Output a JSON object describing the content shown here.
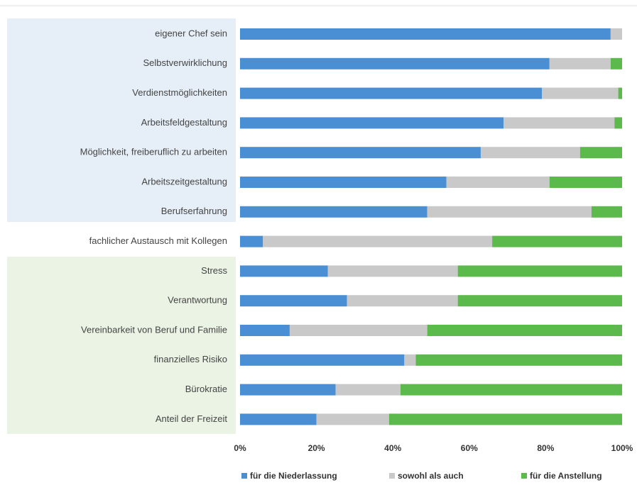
{
  "chart_data": {
    "type": "stacked_bar_horizontal",
    "categories": [
      "eigener Chef sein",
      "Selbstverwirklichung",
      "Verdienstmöglichkeiten",
      "Arbeitsfeldgestaltung",
      "Möglichkeit, freiberuflich zu arbeiten",
      "Arbeitszeitgestaltung",
      "Berufserfahrung",
      "fachlicher Austausch mit Kollegen",
      "Stress",
      "Verantwortung",
      "Vereinbarkeit von Beruf und Familie",
      "finanzielles Risiko",
      "Bürokratie",
      "Anteil der Freizeit"
    ],
    "series": [
      {
        "name": "für die Niederlassung",
        "color": "#4a8fd4",
        "values": [
          97,
          81,
          79,
          69,
          63,
          54,
          49,
          6,
          23,
          28,
          13,
          43,
          25,
          20
        ]
      },
      {
        "name": "sowohl als auch",
        "color": "#c9c9c9",
        "values": [
          3,
          16,
          20,
          29,
          26,
          27,
          43,
          60,
          34,
          29,
          36,
          3,
          17,
          19
        ]
      },
      {
        "name": "für die Anstellung",
        "color": "#5cb94b",
        "values": [
          0,
          3,
          1,
          2,
          11,
          19,
          8,
          34,
          43,
          43,
          51,
          54,
          58,
          61
        ]
      }
    ],
    "xlim": [
      0,
      100
    ],
    "xticks": [
      {
        "value": 0,
        "label": "0%"
      },
      {
        "value": 20,
        "label": "20%"
      },
      {
        "value": 40,
        "label": "40%"
      },
      {
        "value": 60,
        "label": "60%"
      },
      {
        "value": 80,
        "label": "80%"
      },
      {
        "value": 100,
        "label": "100%"
      }
    ]
  }
}
